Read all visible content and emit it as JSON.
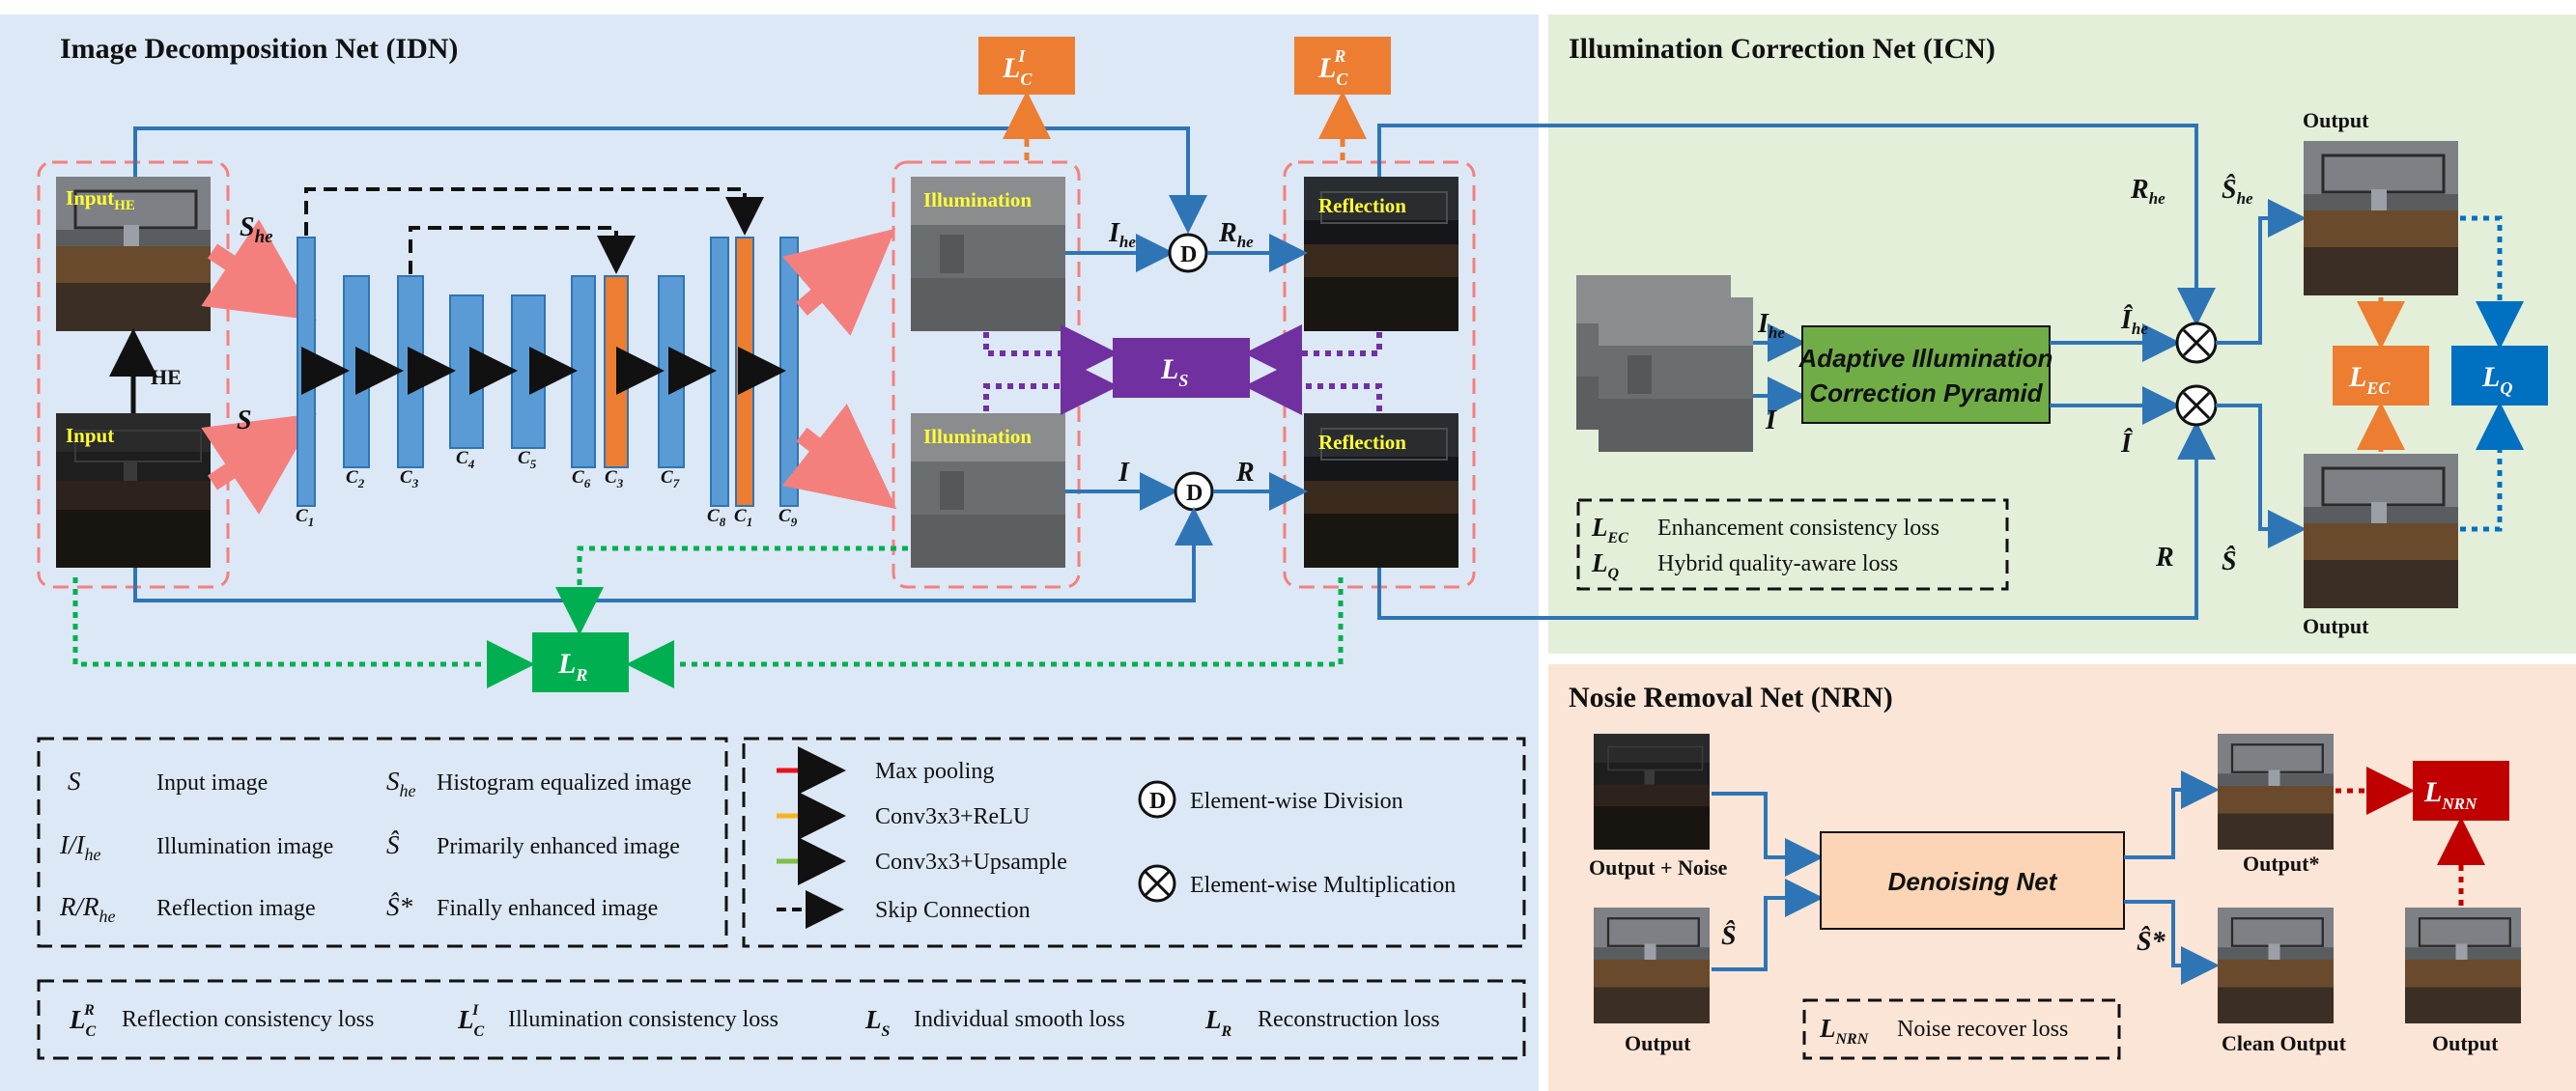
{
  "idn": {
    "title": "Image Decomposition Net (IDN)",
    "input_he": "Input",
    "input_he_sub": "HE",
    "input": "Input",
    "he_label": "HE",
    "s_he": "S",
    "s_he_sub": "he",
    "s": "S",
    "illumination": "Illumination",
    "reflection": "Reflection",
    "channels_main": [
      {
        "name": "C",
        "sub": "1"
      },
      {
        "name": "C",
        "sub": "2"
      },
      {
        "name": "C",
        "sub": "3"
      },
      {
        "name": "C",
        "sub": "4"
      },
      {
        "name": "C",
        "sub": "5"
      },
      {
        "name": "C",
        "sub": "6"
      },
      {
        "name": "C",
        "sub": "3"
      },
      {
        "name": "C",
        "sub": "7"
      },
      {
        "name": "C",
        "sub": "8"
      },
      {
        "name": "C",
        "sub": "1"
      },
      {
        "name": "C",
        "sub": "9"
      }
    ],
    "i_he": "I",
    "i_he_sub": "he",
    "r_he": "R",
    "r_he_sub": "he",
    "i": "I",
    "r": "R",
    "div_op": "D",
    "loss_ci": {
      "main": "L",
      "sub": "C",
      "sup": "I"
    },
    "loss_cr": {
      "main": "L",
      "sub": "C",
      "sup": "R"
    },
    "loss_s": {
      "main": "L",
      "sub": "S"
    },
    "loss_r": {
      "main": "L",
      "sub": "R"
    }
  },
  "legend_symbols": [
    {
      "sym": "S",
      "sub": "",
      "desc": "Input image"
    },
    {
      "sym": "I/I",
      "sub": "he",
      "desc": "Illumination image"
    },
    {
      "sym": "R/R",
      "sub": "he",
      "desc": "Reflection image"
    }
  ],
  "legend_symbols_2": [
    {
      "sym": "S",
      "sub": "he",
      "desc": "Histogram equalized image"
    },
    {
      "sym": "Ŝ",
      "sub": "",
      "desc": "Primarily enhanced image"
    },
    {
      "sym": "Ŝ*",
      "sub": "",
      "desc": "Finally enhanced image"
    }
  ],
  "legend_ops": [
    {
      "label": "Max pooling",
      "color": "#e8121e"
    },
    {
      "label": "Conv3x3+ReLU",
      "color": "#f6b51c"
    },
    {
      "label": "Conv3x3+Upsample",
      "color": "#7cc142"
    },
    {
      "label": "Skip Connection",
      "color": "#111111"
    }
  ],
  "legend_elementwise": [
    {
      "symbol": "D",
      "label": "Element-wise Division"
    },
    {
      "symbol": "⊗",
      "label": "Element-wise Multiplication"
    }
  ],
  "legend_losses": [
    {
      "main": "L",
      "sub": "C",
      "sup": "R",
      "desc": "Reflection consistency loss"
    },
    {
      "main": "L",
      "sub": "C",
      "sup": "I",
      "desc": "Illumination consistency loss"
    },
    {
      "main": "L",
      "sub": "S",
      "sup": "",
      "desc": "Individual smooth loss"
    },
    {
      "main": "L",
      "sub": "R",
      "sup": "",
      "desc": "Reconstruction loss"
    }
  ],
  "icn": {
    "title": "Illumination Correction Net (ICN)",
    "box_line1": "Adaptive Illumination",
    "box_line2": "Correction Pyramid",
    "r_he": "R",
    "r_he_sub": "he",
    "i_he": "I",
    "i_he_sub": "he",
    "i": "I",
    "ihat_he": "Î",
    "ihat_he_sub": "he",
    "ihat": "Î",
    "r": "R",
    "shat_he": "Ŝ",
    "shat_he_sub": "he",
    "shat": "Ŝ",
    "output_top": "Output",
    "output_bottom": "Output",
    "loss_ec": {
      "main": "L",
      "sub": "EC"
    },
    "loss_q": {
      "main": "L",
      "sub": "Q"
    },
    "legend": [
      {
        "main": "L",
        "sub": "EC",
        "desc": "Enhancement consistency loss"
      },
      {
        "main": "L",
        "sub": "Q",
        "desc": "Hybrid quality-aware loss"
      }
    ]
  },
  "nrn": {
    "title": "Nosie Removal Net (NRN)",
    "box": "Denoising Net",
    "output_noise": "Output + Noise",
    "output": "Output",
    "shat": "Ŝ",
    "shat_star": "Ŝ*",
    "output_star": "Output*",
    "clean_output": "Clean Output",
    "output_final": "Output",
    "loss_nrn": {
      "main": "L",
      "sub": "NRN"
    },
    "legend": {
      "main": "L",
      "sub": "NRN",
      "desc": "Noise recover loss"
    }
  },
  "colors": {
    "idn_bg": "#dce8f5",
    "icn_bg": "#e3efd9",
    "nrn_bg": "#fbe5d6",
    "blue": "#2e75b6",
    "orange": "#ed7d31",
    "purple": "#7030a0",
    "green": "#00b050",
    "red": "#c00000",
    "box_green": "#70ad47",
    "q_blue": "#0070c0"
  }
}
